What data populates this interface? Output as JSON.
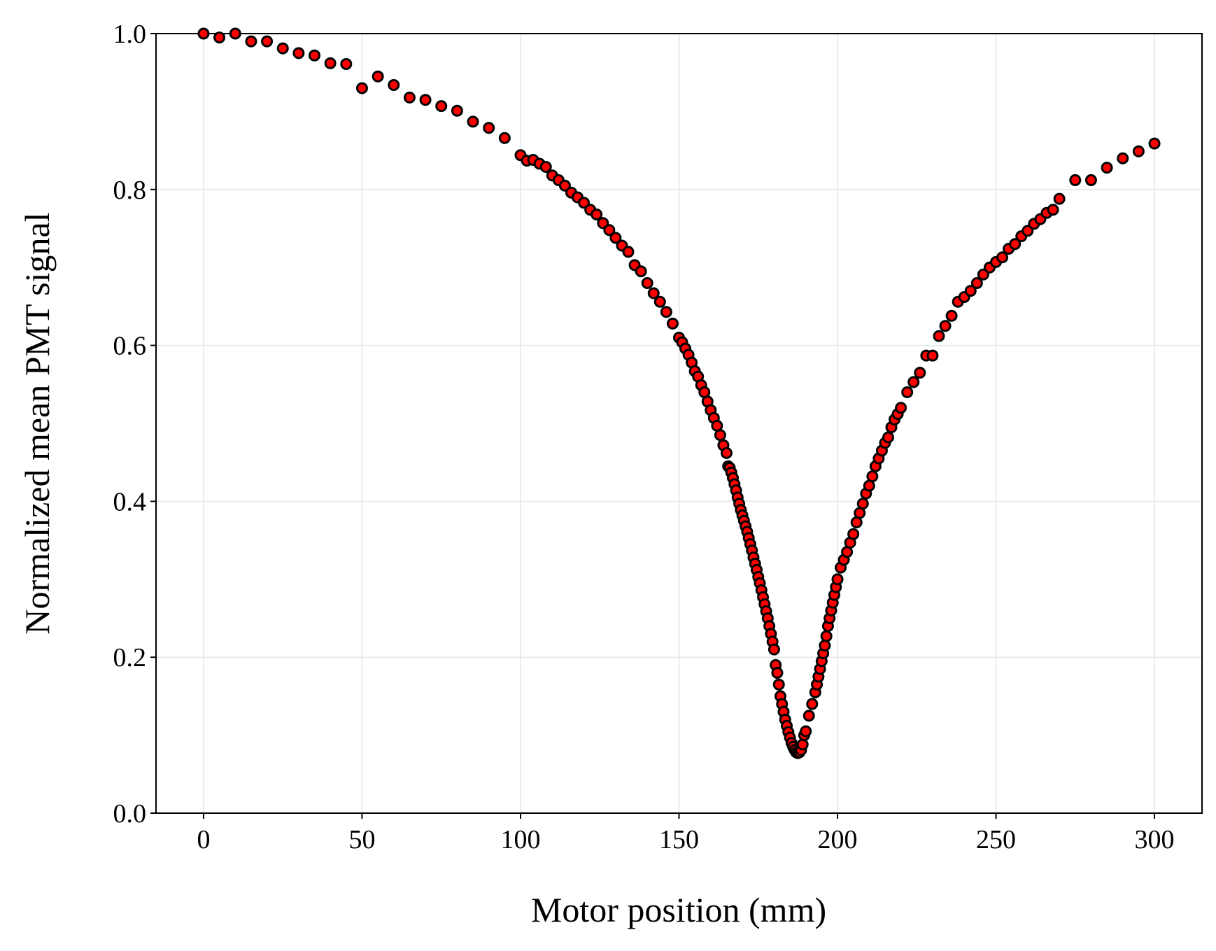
{
  "chart_data": {
    "type": "scatter",
    "x_label": "Motor position (mm)",
    "y_label": "Normalized mean PMT signal",
    "xlim": [
      -15,
      315
    ],
    "ylim": [
      0,
      1
    ],
    "xticks": [
      0,
      50,
      100,
      150,
      200,
      250,
      300
    ],
    "yticks": [
      {
        "value": 0,
        "label": "0.0"
      },
      0.2,
      0.4,
      0.6,
      0.8,
      {
        "value": 1,
        "label": "1.0"
      }
    ],
    "grid": true,
    "color": "#ff0000",
    "edge_color": "#000000",
    "x": [
      0,
      5,
      10,
      15,
      20,
      25,
      30,
      35,
      40,
      45,
      50,
      55,
      60,
      65,
      70,
      75,
      80,
      85,
      90,
      95,
      100,
      102,
      104,
      106,
      108,
      110,
      112,
      114,
      116,
      118,
      120,
      122,
      124,
      126,
      128,
      130,
      132,
      134,
      136,
      138,
      140,
      142,
      144,
      146,
      148,
      150,
      151,
      152,
      153,
      154,
      155,
      156,
      157,
      158,
      159,
      160,
      161,
      162,
      163,
      164,
      165,
      165.5,
      166,
      166.5,
      167,
      167.5,
      168,
      168.5,
      169,
      169.5,
      170,
      170.5,
      171,
      171.5,
      172,
      172.5,
      173,
      173.5,
      174,
      174.5,
      175,
      175.5,
      176,
      176.5,
      177,
      177.5,
      178,
      178.5,
      179,
      179.5,
      180,
      180.5,
      181,
      181.5,
      182,
      182.5,
      183,
      183.5,
      184,
      184.5,
      185,
      185.5,
      186,
      186.5,
      187,
      187.5,
      188,
      188.5,
      189,
      189.5,
      190,
      191,
      192,
      193,
      193.5,
      194,
      194.5,
      195,
      195.5,
      196,
      196.5,
      197,
      197.5,
      198,
      198.5,
      199,
      199.5,
      200,
      201,
      202,
      203,
      204,
      205,
      206,
      207,
      208,
      209,
      210,
      211,
      212,
      213,
      214,
      215,
      216,
      217,
      218,
      219,
      220,
      222,
      224,
      226,
      228,
      230,
      232,
      234,
      236,
      238,
      240,
      242,
      244,
      246,
      248,
      250,
      252,
      254,
      256,
      258,
      260,
      262,
      264,
      266,
      268,
      270,
      275,
      280,
      285,
      290,
      295,
      300
    ],
    "values": [
      1.0,
      0.995,
      1.0,
      0.99,
      0.99,
      0.981,
      0.975,
      0.972,
      0.962,
      0.961,
      0.93,
      0.945,
      0.934,
      0.918,
      0.915,
      0.907,
      0.901,
      0.887,
      0.879,
      0.866,
      0.844,
      0.837,
      0.838,
      0.833,
      0.829,
      0.818,
      0.812,
      0.805,
      0.796,
      0.79,
      0.783,
      0.774,
      0.768,
      0.757,
      0.748,
      0.738,
      0.728,
      0.72,
      0.703,
      0.695,
      0.68,
      0.667,
      0.656,
      0.643,
      0.628,
      0.61,
      0.604,
      0.596,
      0.588,
      0.578,
      0.567,
      0.56,
      0.549,
      0.54,
      0.528,
      0.517,
      0.507,
      0.497,
      0.485,
      0.472,
      0.462,
      0.445,
      0.443,
      0.437,
      0.43,
      0.422,
      0.414,
      0.405,
      0.397,
      0.389,
      0.382,
      0.375,
      0.368,
      0.361,
      0.353,
      0.345,
      0.337,
      0.328,
      0.32,
      0.312,
      0.303,
      0.295,
      0.286,
      0.277,
      0.268,
      0.259,
      0.25,
      0.24,
      0.23,
      0.22,
      0.21,
      0.19,
      0.18,
      0.165,
      0.15,
      0.14,
      0.13,
      0.12,
      0.112,
      0.104,
      0.097,
      0.09,
      0.085,
      0.081,
      0.078,
      0.077,
      0.078,
      0.081,
      0.088,
      0.1,
      0.105,
      0.125,
      0.14,
      0.155,
      0.165,
      0.175,
      0.185,
      0.195,
      0.205,
      0.215,
      0.227,
      0.24,
      0.25,
      0.26,
      0.27,
      0.28,
      0.29,
      0.3,
      0.315,
      0.325,
      0.335,
      0.347,
      0.358,
      0.373,
      0.385,
      0.397,
      0.41,
      0.42,
      0.432,
      0.445,
      0.455,
      0.465,
      0.475,
      0.482,
      0.495,
      0.505,
      0.512,
      0.52,
      0.54,
      0.553,
      0.565,
      0.587,
      0.587,
      0.612,
      0.625,
      0.638,
      0.656,
      0.662,
      0.67,
      0.68,
      0.691,
      0.7,
      0.707,
      0.713,
      0.724,
      0.73,
      0.74,
      0.747,
      0.756,
      0.762,
      0.77,
      0.774,
      0.788,
      0.812,
      0.812,
      0.828,
      0.84,
      0.849,
      0.859
    ]
  }
}
